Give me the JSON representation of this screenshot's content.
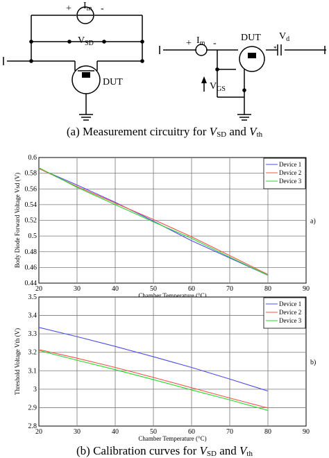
{
  "circuits": {
    "left": {
      "plus": "+",
      "minus": "-",
      "im": "I",
      "im_sub": "m",
      "vsd": "V",
      "vsd_sub": "SD",
      "dut": "DUT"
    },
    "right": {
      "plus": "+",
      "minus": "-",
      "im": "I",
      "im_sub": "m",
      "dut": "DUT",
      "vd": "V",
      "vd_sub": "d",
      "vd_star": "*",
      "vgs": "V",
      "vgs_sub": "GS"
    }
  },
  "caption_a": {
    "prefix": "(a) Measurement circuitry for ",
    "v1": "V",
    "v1_sub": "SD",
    "mid": " and ",
    "v2": "V",
    "v2_sub": "th"
  },
  "caption_b": {
    "prefix": "(b) Calibration curves for ",
    "v1": "V",
    "v1_sub": "SD",
    "mid": " and ",
    "v2": "V",
    "v2_sub": "th"
  },
  "colors": {
    "device1": "#4b4bff",
    "device2": "#ff4b4b",
    "device3": "#22dd22"
  },
  "chart_data": [
    {
      "type": "line",
      "panel_label": "a)",
      "xlabel": "Chamber Temperature (°C)",
      "ylabel": "Body Diode Forward Voltage Vsd (V)",
      "xlim": [
        20,
        90
      ],
      "ylim": [
        0.44,
        0.6
      ],
      "xticks": [
        20,
        30,
        40,
        50,
        60,
        70,
        80,
        90
      ],
      "yticks": [
        0.44,
        0.46,
        0.48,
        0.5,
        0.52,
        0.54,
        0.56,
        0.58,
        0.6
      ],
      "ytick_labels": [
        "0.44",
        "0.46",
        "0.48",
        "0.5",
        "0.52",
        "0.54",
        "0.56",
        "0.58",
        "0.6"
      ],
      "grid": true,
      "legend": "top-right",
      "x": [
        20,
        30,
        40,
        50,
        60,
        70,
        80
      ],
      "series": [
        {
          "name": "Device 1",
          "color": "#4b4bff",
          "values": [
            0.586,
            0.565,
            0.543,
            0.519,
            0.494,
            0.472,
            0.45
          ]
        },
        {
          "name": "Device 2",
          "color": "#ff4b4b",
          "values": [
            0.586,
            0.563,
            0.542,
            0.521,
            0.499,
            0.475,
            0.451
          ]
        },
        {
          "name": "Device 3",
          "color": "#22dd22",
          "values": [
            0.587,
            0.562,
            0.54,
            0.518,
            0.497,
            0.473,
            0.45
          ]
        }
      ]
    },
    {
      "type": "line",
      "panel_label": "b)",
      "xlabel": "Chamber Temperature (°C)",
      "ylabel": "Threshold Voltage Vth (V)",
      "xlim": [
        20,
        90
      ],
      "ylim": [
        2.8,
        3.5
      ],
      "xticks": [
        20,
        30,
        40,
        50,
        60,
        70,
        80,
        90
      ],
      "yticks": [
        2.8,
        2.9,
        3.0,
        3.1,
        3.2,
        3.3,
        3.4,
        3.5
      ],
      "ytick_labels": [
        "2.8",
        "2.9",
        "3",
        "3.1",
        "3.2",
        "3.3",
        "3.4",
        "3.5"
      ],
      "grid": true,
      "legend": "top-right",
      "x": [
        20,
        30,
        40,
        50,
        60,
        70,
        80
      ],
      "series": [
        {
          "name": "Device 1",
          "color": "#4b4bff",
          "values": [
            3.335,
            3.285,
            3.232,
            3.176,
            3.118,
            3.055,
            2.99
          ]
        },
        {
          "name": "Device 2",
          "color": "#ff4b4b",
          "values": [
            3.215,
            3.168,
            3.118,
            3.064,
            3.008,
            2.952,
            2.898
          ]
        },
        {
          "name": "Device 3",
          "color": "#22dd22",
          "values": [
            3.21,
            3.157,
            3.106,
            3.052,
            2.996,
            2.942,
            2.885
          ]
        }
      ]
    }
  ]
}
